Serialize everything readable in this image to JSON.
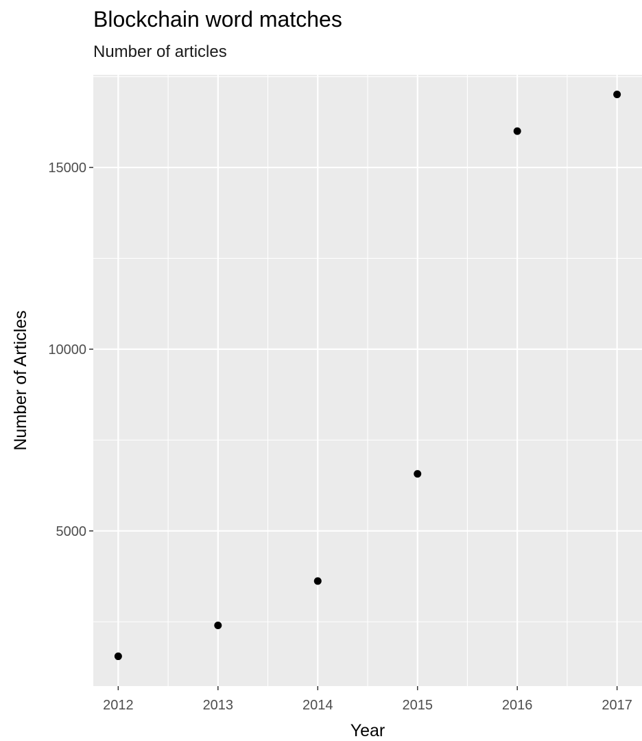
{
  "chart_data": {
    "type": "scatter",
    "title": "Blockchain word matches",
    "subtitle": "Number of articles",
    "xlabel": "Year",
    "ylabel": "Number of Articles",
    "x": [
      2012,
      2013,
      2014,
      2015,
      2016,
      2017
    ],
    "y": [
      1550,
      2400,
      3620,
      6570,
      16000,
      17010
    ],
    "x_ticks": [
      "2012",
      "2013",
      "2014",
      "2015",
      "2016",
      "2017"
    ],
    "y_ticks": [
      5000,
      10000,
      15000
    ],
    "y_tick_labels": [
      "5000",
      "10000",
      "15000"
    ],
    "xlim": [
      2011.75,
      2017.25
    ],
    "ylim": [
      730,
      17550
    ],
    "grid": true,
    "legend": "none",
    "colors": {
      "panel": "#ebebeb",
      "grid": "#ffffff",
      "point": "#000000",
      "tick_text": "#4d4d4d"
    }
  }
}
